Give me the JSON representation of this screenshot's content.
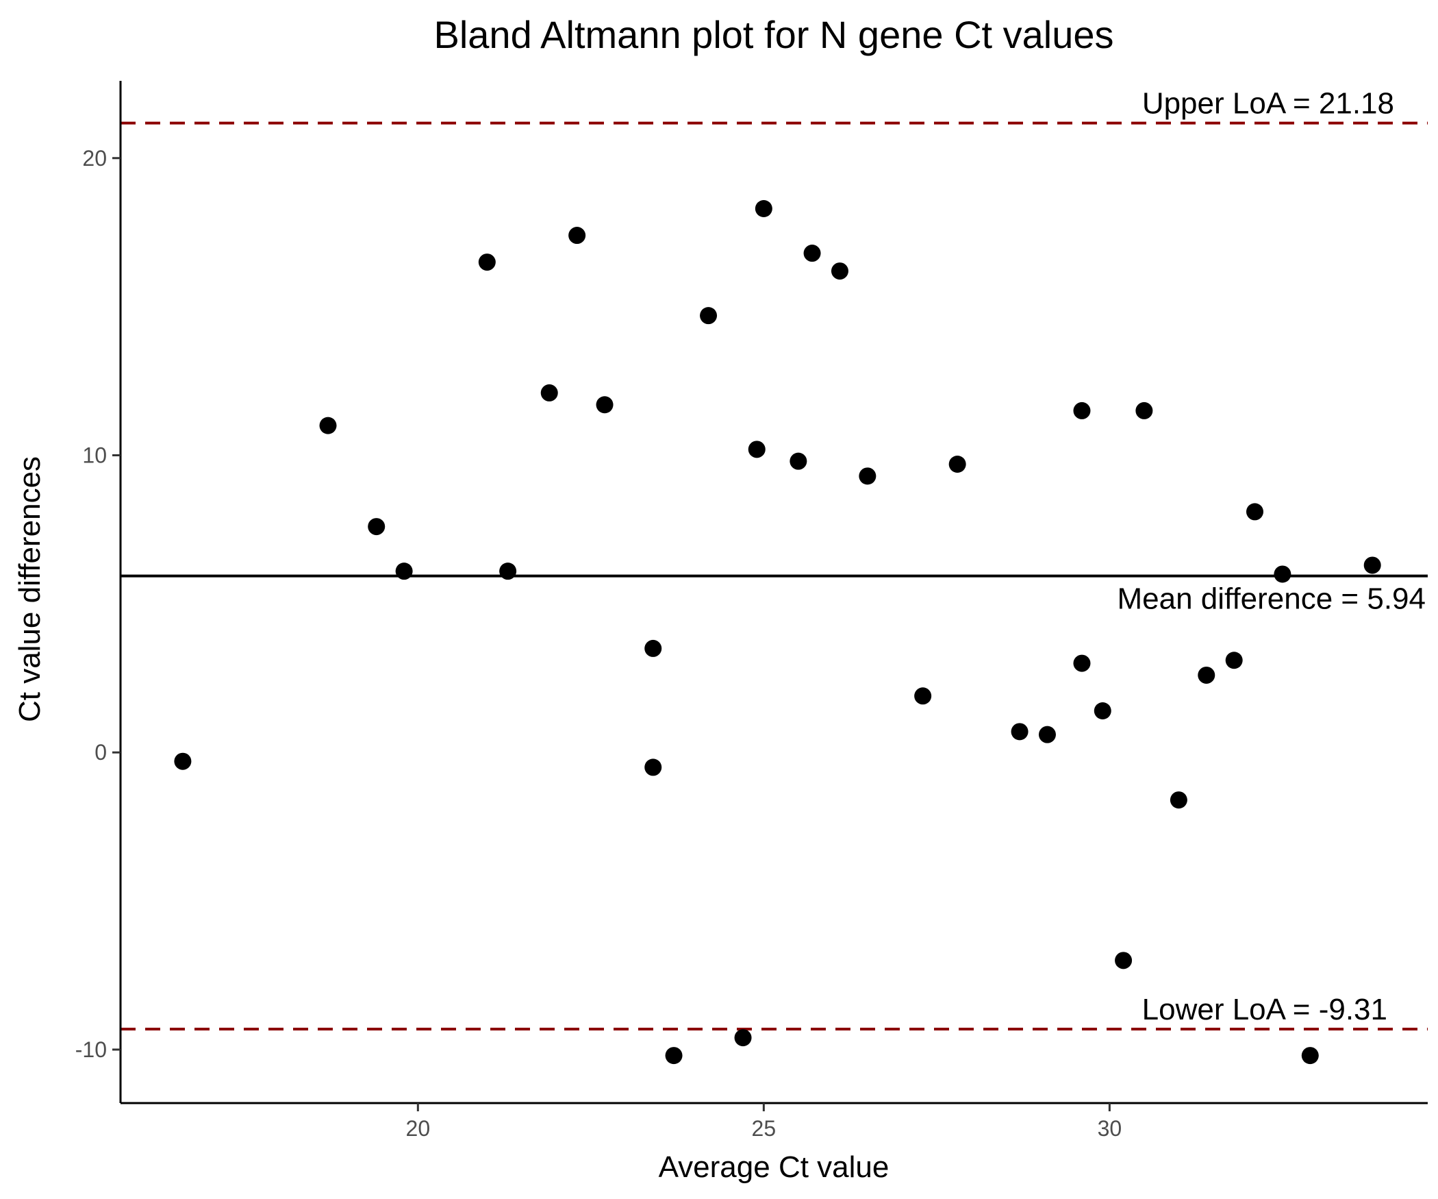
{
  "chart_data": {
    "type": "scatter",
    "title": "Bland Altmann plot for N gene Ct values",
    "xlabel": "Average Ct value",
    "ylabel": "Ct value differences",
    "xlim": [
      15.7,
      34.6
    ],
    "ylim": [
      -11.8,
      22.6
    ],
    "xticks": [
      20,
      25,
      30
    ],
    "yticks": [
      -10,
      0,
      10,
      20
    ],
    "grid": false,
    "point_color": "#000000",
    "mean_line_color": "#000000",
    "loa_line_color": "#8b0000",
    "points": [
      {
        "x": 16.6,
        "y": -0.3
      },
      {
        "x": 18.7,
        "y": 11.0
      },
      {
        "x": 19.4,
        "y": 7.6
      },
      {
        "x": 19.8,
        "y": 6.1
      },
      {
        "x": 21.0,
        "y": 16.5
      },
      {
        "x": 21.3,
        "y": 6.1
      },
      {
        "x": 21.9,
        "y": 12.1
      },
      {
        "x": 22.3,
        "y": 17.4
      },
      {
        "x": 22.7,
        "y": 11.7
      },
      {
        "x": 23.4,
        "y": 3.5
      },
      {
        "x": 23.4,
        "y": -0.5
      },
      {
        "x": 23.7,
        "y": -10.2
      },
      {
        "x": 24.2,
        "y": 14.7
      },
      {
        "x": 24.7,
        "y": -9.6
      },
      {
        "x": 24.9,
        "y": 10.2
      },
      {
        "x": 25.0,
        "y": 18.3
      },
      {
        "x": 25.5,
        "y": 9.8
      },
      {
        "x": 25.7,
        "y": 16.8
      },
      {
        "x": 26.1,
        "y": 16.2
      },
      {
        "x": 26.5,
        "y": 9.3
      },
      {
        "x": 27.3,
        "y": 1.9
      },
      {
        "x": 27.8,
        "y": 9.7
      },
      {
        "x": 28.7,
        "y": 0.7
      },
      {
        "x": 29.1,
        "y": 0.6
      },
      {
        "x": 29.6,
        "y": 3.0
      },
      {
        "x": 29.6,
        "y": 11.5
      },
      {
        "x": 29.9,
        "y": 1.4
      },
      {
        "x": 30.2,
        "y": -7.0
      },
      {
        "x": 30.5,
        "y": 11.5
      },
      {
        "x": 31.0,
        "y": -1.6
      },
      {
        "x": 31.4,
        "y": 2.6
      },
      {
        "x": 31.8,
        "y": 3.1
      },
      {
        "x": 32.1,
        "y": 8.1
      },
      {
        "x": 32.5,
        "y": 6.0
      },
      {
        "x": 32.9,
        "y": -10.2
      },
      {
        "x": 33.8,
        "y": 6.3
      }
    ],
    "mean_difference": {
      "value": 5.94,
      "label": "Mean difference = 5.94"
    },
    "upper_loa": {
      "value": 21.18,
      "label": "Upper LoA = 21.18"
    },
    "lower_loa": {
      "value": -9.31,
      "label": "Lower LoA = -9.31"
    }
  }
}
